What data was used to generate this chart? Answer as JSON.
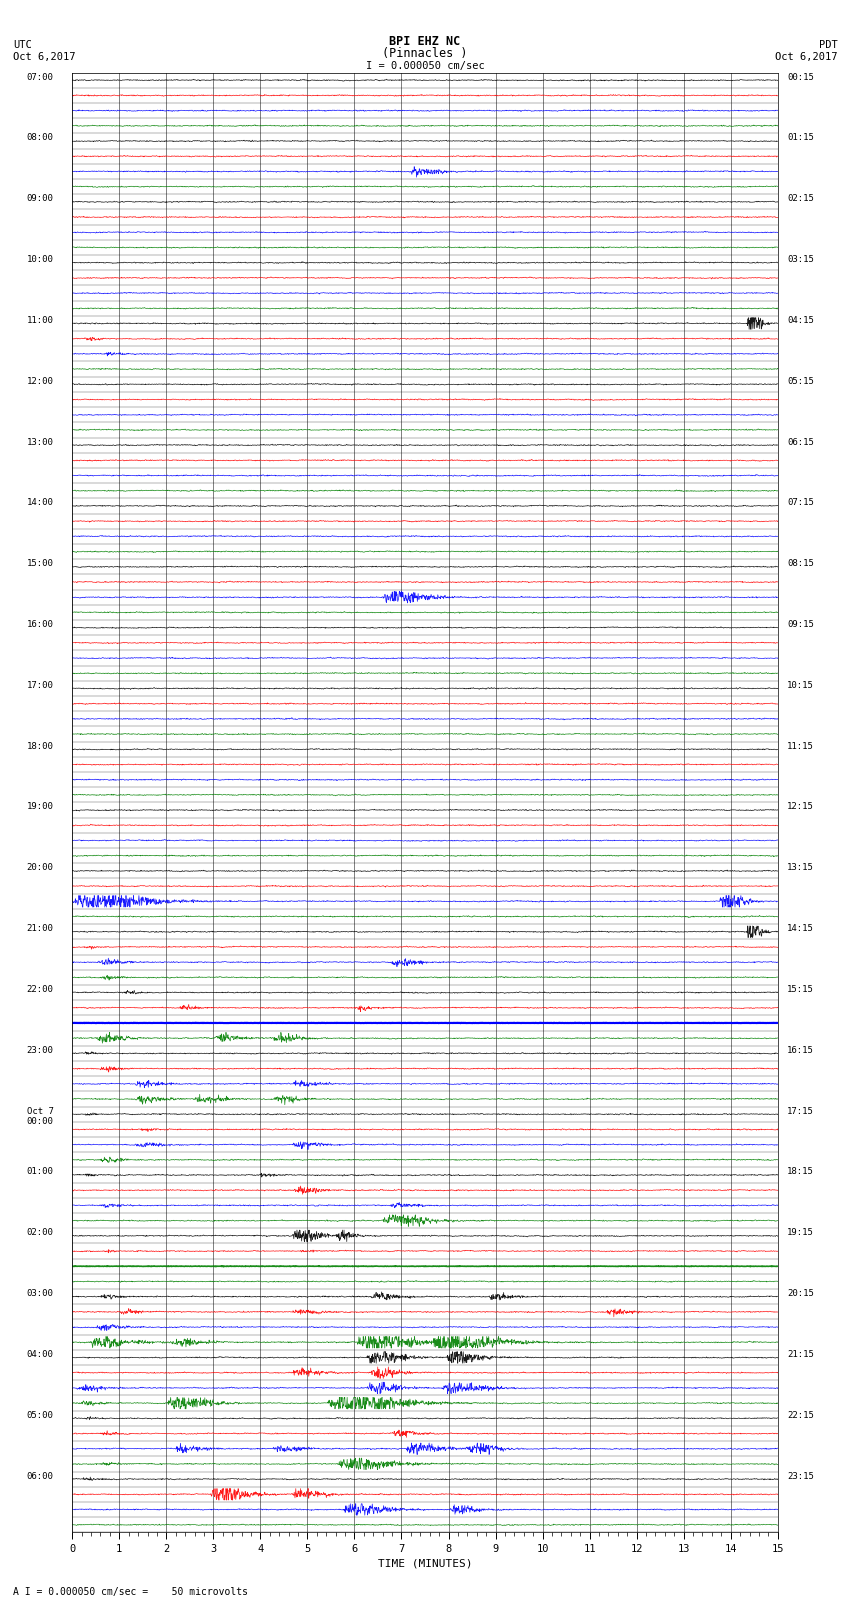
{
  "title_line1": "BPI EHZ NC",
  "title_line2": "(Pinnacles )",
  "scale_label": "I = 0.000050 cm/sec",
  "left_header_line1": "UTC",
  "left_header_line2": "Oct 6,2017",
  "right_header_line1": "PDT",
  "right_header_line2": "Oct 6,2017",
  "bottom_label": "TIME (MINUTES)",
  "bottom_note": "A I = 0.000050 cm/sec =    50 microvolts",
  "utc_labels": {
    "0": "07:00",
    "4": "08:00",
    "8": "09:00",
    "12": "10:00",
    "16": "11:00",
    "20": "12:00",
    "24": "13:00",
    "28": "14:00",
    "32": "15:00",
    "36": "16:00",
    "40": "17:00",
    "44": "18:00",
    "48": "19:00",
    "52": "20:00",
    "56": "21:00",
    "60": "22:00",
    "64": "23:00",
    "68": "Oct 7\n00:00",
    "72": "01:00",
    "76": "02:00",
    "80": "03:00",
    "84": "04:00",
    "88": "05:00",
    "92": "06:00"
  },
  "pdt_labels": {
    "0": "00:15",
    "4": "01:15",
    "8": "02:15",
    "12": "03:15",
    "16": "04:15",
    "20": "05:15",
    "24": "06:15",
    "28": "07:15",
    "32": "08:15",
    "36": "09:15",
    "40": "10:15",
    "44": "11:15",
    "48": "12:15",
    "52": "13:15",
    "56": "14:15",
    "60": "15:15",
    "64": "16:15",
    "68": "17:15",
    "72": "18:15",
    "76": "19:15",
    "80": "20:15",
    "84": "21:15",
    "88": "22:15",
    "92": "23:15"
  },
  "n_rows": 96,
  "n_minutes": 15,
  "colors": [
    "black",
    "red",
    "blue",
    "green"
  ],
  "bg_color": "#ffffff",
  "clipped_row": 37,
  "noise_level": 0.018,
  "seed": 12345
}
